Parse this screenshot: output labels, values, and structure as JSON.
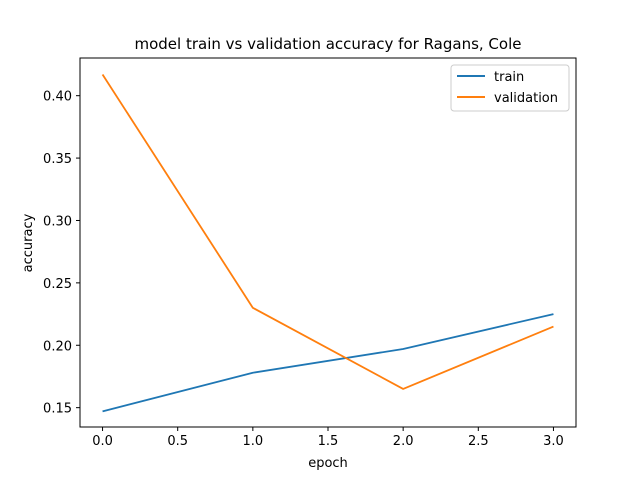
{
  "chart_data": {
    "type": "line",
    "title": "model train vs validation accuracy for Ragans, Cole",
    "xlabel": "epoch",
    "ylabel": "accuracy",
    "x": [
      0,
      1,
      2,
      3
    ],
    "xlim": [
      -0.15,
      3.15
    ],
    "ylim": [
      0.1345,
      0.4302
    ],
    "xticks": [
      0.0,
      0.5,
      1.0,
      1.5,
      2.0,
      2.5,
      3.0
    ],
    "xtick_labels": [
      "0.0",
      "0.5",
      "1.0",
      "1.5",
      "2.0",
      "2.5",
      "3.0"
    ],
    "yticks": [
      0.15,
      0.2,
      0.25,
      0.3,
      0.35,
      0.4
    ],
    "ytick_labels": [
      "0.15",
      "0.20",
      "0.25",
      "0.30",
      "0.35",
      "0.40"
    ],
    "grid": false,
    "legend": "top-right",
    "series": [
      {
        "name": "train",
        "color": "#1f77b4",
        "values": [
          0.147,
          0.178,
          0.197,
          0.225
        ]
      },
      {
        "name": "validation",
        "color": "#ff7f0e",
        "values": [
          0.417,
          0.23,
          0.165,
          0.215
        ]
      }
    ]
  }
}
